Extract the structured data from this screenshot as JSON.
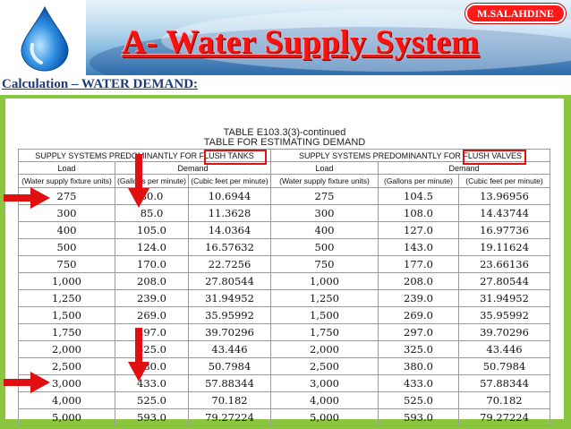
{
  "header": {
    "title": "A- Water Supply System",
    "author_badge": "M.SALAHDINE",
    "logo_icon": "water-drop-icon"
  },
  "subtitle": "Calculation – WATER DEMAND:",
  "table_figure": {
    "caption_line1": "TABLE E103.3(3)-continued",
    "caption_line2": "TABLE FOR ESTIMATING DEMAND",
    "group_left_prefix": "SUPPLY SYSTEMS PREDOMINANTLY FOR",
    "group_left_highlight": "FLUSH TANKS",
    "group_right_prefix": "SUPPLY SYSTEMS PREDOMINANTLY FOR",
    "group_right_highlight": "FLUSH VALVES",
    "load_label": "Load",
    "demand_label": "Demand",
    "col_units": "(Water supply fixture units)",
    "col_gpm": "(Gallons per minute)",
    "col_cfm": "(Cubic feet per minute)",
    "rows": [
      [
        "275",
        "80.0",
        "10.6944",
        "275",
        "104.5",
        "13.96956"
      ],
      [
        "300",
        "85.0",
        "11.3628",
        "300",
        "108.0",
        "14.43744"
      ],
      [
        "400",
        "105.0",
        "14.0364",
        "400",
        "127.0",
        "16.97736"
      ],
      [
        "500",
        "124.0",
        "16.57632",
        "500",
        "143.0",
        "19.11624"
      ],
      [
        "750",
        "170.0",
        "22.7256",
        "750",
        "177.0",
        "23.66136"
      ],
      [
        "1,000",
        "208.0",
        "27.80544",
        "1,000",
        "208.0",
        "27.80544"
      ],
      [
        "1,250",
        "239.0",
        "31.94952",
        "1,250",
        "239.0",
        "31.94952"
      ],
      [
        "1,500",
        "269.0",
        "35.95992",
        "1,500",
        "269.0",
        "35.95992"
      ],
      [
        "1,750",
        "297.0",
        "39.70296",
        "1,750",
        "297.0",
        "39.70296"
      ],
      [
        "2,000",
        "325.0",
        "43.446",
        "2,000",
        "325.0",
        "43.446"
      ],
      [
        "2,500",
        "380.0",
        "50.7984",
        "2,500",
        "380.0",
        "50.7984"
      ],
      [
        "3,000",
        "433.0",
        "57.88344",
        "3,000",
        "433.0",
        "57.88344"
      ],
      [
        "4,000",
        "525.0",
        "70.182",
        "4,000",
        "525.0",
        "70.182"
      ],
      [
        "5,000",
        "593.0",
        "79.27224",
        "5,000",
        "593.0",
        "79.27224"
      ]
    ]
  },
  "colors": {
    "slide_background": "#8cc63e",
    "title_red": "#ff1010",
    "highlight_red": "#e01010",
    "subtitle_blue": "#1f3a7a"
  }
}
